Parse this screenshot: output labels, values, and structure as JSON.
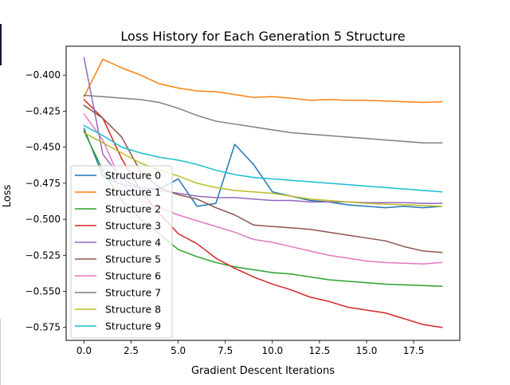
{
  "chart_data": {
    "type": "line",
    "title": "Loss History for Each Generation 5 Structure",
    "xlabel": "Gradient Descent Iterations",
    "ylabel": "Loss",
    "xlim": [
      -0.95,
      19.95
    ],
    "ylim": [
      -0.584,
      -0.38
    ],
    "xticks": [
      0,
      2.5,
      5,
      7.5,
      10,
      12.5,
      15,
      17.5
    ],
    "xtick_labels": [
      "0.0",
      "2.5",
      "5.0",
      "7.5",
      "10.0",
      "12.5",
      "15.0",
      "17.5"
    ],
    "yticks": [
      -0.4,
      -0.425,
      -0.45,
      -0.475,
      -0.5,
      -0.525,
      -0.55,
      -0.575
    ],
    "ytick_labels": [
      "−0.400",
      "−0.425",
      "−0.450",
      "−0.475",
      "−0.500",
      "−0.525",
      "−0.550",
      "−0.575"
    ],
    "grid": false,
    "legend_position": "lower-left",
    "x": [
      0,
      1,
      2,
      3,
      4,
      5,
      6,
      7,
      8,
      9,
      10,
      11,
      12,
      13,
      14,
      15,
      16,
      17,
      18,
      19
    ],
    "series": [
      {
        "name": "Structure 0",
        "color": "#1f77b4",
        "values": [
          -0.437,
          -0.47,
          -0.476,
          -0.478,
          -0.479,
          -0.472,
          -0.491,
          -0.489,
          -0.448,
          -0.462,
          -0.481,
          -0.484,
          -0.487,
          -0.488,
          -0.49,
          -0.491,
          -0.492,
          -0.491,
          -0.492,
          -0.491
        ]
      },
      {
        "name": "Structure 1",
        "color": "#ff7f0e",
        "values": [
          -0.415,
          -0.389,
          -0.395,
          -0.4,
          -0.406,
          -0.409,
          -0.411,
          -0.4115,
          -0.4135,
          -0.4155,
          -0.415,
          -0.416,
          -0.4175,
          -0.417,
          -0.4175,
          -0.4175,
          -0.418,
          -0.4185,
          -0.419,
          -0.4185
        ]
      },
      {
        "name": "Structure 2",
        "color": "#2ca02c",
        "values": [
          -0.439,
          -0.466,
          -0.487,
          -0.5,
          -0.51,
          -0.521,
          -0.526,
          -0.53,
          -0.533,
          -0.535,
          -0.537,
          -0.538,
          -0.54,
          -0.542,
          -0.543,
          -0.544,
          -0.545,
          -0.5455,
          -0.546,
          -0.5465
        ]
      },
      {
        "name": "Structure 3",
        "color": "#d62728",
        "values": [
          -0.417,
          -0.43,
          -0.458,
          -0.48,
          -0.496,
          -0.51,
          -0.517,
          -0.527,
          -0.534,
          -0.54,
          -0.545,
          -0.549,
          -0.554,
          -0.557,
          -0.561,
          -0.563,
          -0.565,
          -0.569,
          -0.573,
          -0.575
        ]
      },
      {
        "name": "Structure 4",
        "color": "#9467bd",
        "values": [
          -0.388,
          -0.455,
          -0.472,
          -0.478,
          -0.48,
          -0.482,
          -0.484,
          -0.485,
          -0.485,
          -0.486,
          -0.487,
          -0.487,
          -0.488,
          -0.488,
          -0.488,
          -0.4885,
          -0.4885,
          -0.4885,
          -0.489,
          -0.489
        ]
      },
      {
        "name": "Structure 5",
        "color": "#8c564b",
        "values": [
          -0.421,
          -0.43,
          -0.443,
          -0.467,
          -0.478,
          -0.483,
          -0.486,
          -0.492,
          -0.497,
          -0.504,
          -0.505,
          -0.506,
          -0.507,
          -0.509,
          -0.511,
          -0.513,
          -0.515,
          -0.519,
          -0.522,
          -0.523
        ]
      },
      {
        "name": "Structure 6",
        "color": "#e377c2",
        "values": [
          -0.427,
          -0.445,
          -0.475,
          -0.487,
          -0.492,
          -0.497,
          -0.501,
          -0.505,
          -0.509,
          -0.514,
          -0.516,
          -0.519,
          -0.522,
          -0.525,
          -0.527,
          -0.529,
          -0.53,
          -0.5305,
          -0.531,
          -0.53
        ]
      },
      {
        "name": "Structure 7",
        "color": "#7f7f7f",
        "values": [
          -0.414,
          -0.415,
          -0.416,
          -0.417,
          -0.419,
          -0.423,
          -0.428,
          -0.432,
          -0.434,
          -0.436,
          -0.438,
          -0.44,
          -0.441,
          -0.442,
          -0.443,
          -0.444,
          -0.445,
          -0.446,
          -0.447,
          -0.447
        ]
      },
      {
        "name": "Structure 8",
        "color": "#bcbd22",
        "values": [
          -0.44,
          -0.447,
          -0.454,
          -0.461,
          -0.466,
          -0.47,
          -0.475,
          -0.478,
          -0.48,
          -0.481,
          -0.482,
          -0.484,
          -0.486,
          -0.487,
          -0.488,
          -0.489,
          -0.4895,
          -0.49,
          -0.4905,
          -0.491
        ]
      },
      {
        "name": "Structure 9",
        "color": "#17becf",
        "values": [
          -0.435,
          -0.442,
          -0.45,
          -0.454,
          -0.457,
          -0.459,
          -0.462,
          -0.466,
          -0.469,
          -0.471,
          -0.472,
          -0.473,
          -0.474,
          -0.475,
          -0.476,
          -0.477,
          -0.478,
          -0.479,
          -0.48,
          -0.481
        ]
      }
    ]
  }
}
